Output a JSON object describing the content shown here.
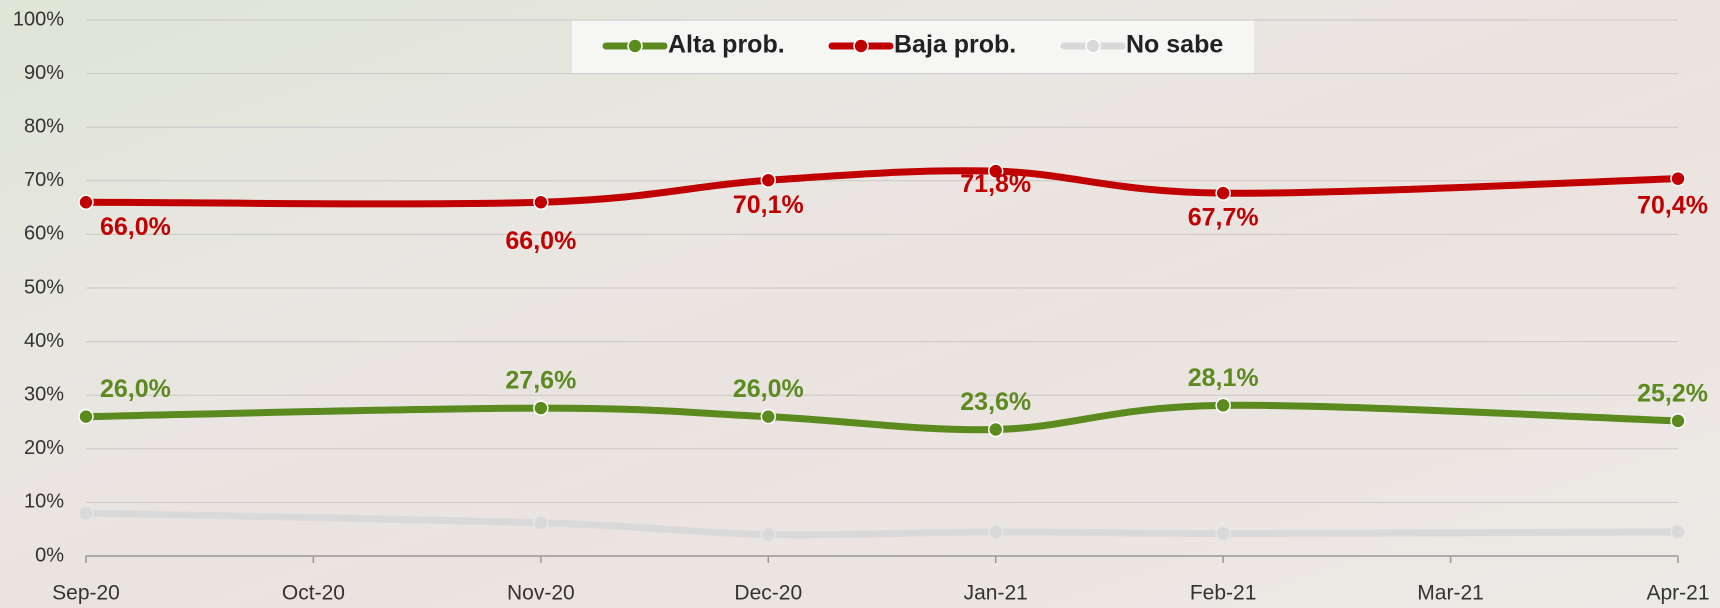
{
  "chart_data": {
    "type": "line",
    "x": [
      "Sep-20",
      "Nov-20",
      "Dec-20",
      "Jan-21",
      "Feb-21",
      "Apr-21"
    ],
    "xticks": [
      "Sep-20",
      "Oct-20",
      "Nov-20",
      "Dec-20",
      "Jan-21",
      "Feb-21",
      "Mar-21",
      "Apr-21"
    ],
    "ylim": [
      0,
      100
    ],
    "yticks": [
      {
        "value": 0,
        "label": "0%"
      },
      {
        "value": 10,
        "label": "10%"
      },
      {
        "value": 20,
        "label": "20%"
      },
      {
        "value": 30,
        "label": "30%"
      },
      {
        "value": 40,
        "label": "40%"
      },
      {
        "value": 50,
        "label": "50%"
      },
      {
        "value": 60,
        "label": "60%"
      },
      {
        "value": 70,
        "label": "70%"
      },
      {
        "value": 80,
        "label": "80%"
      },
      {
        "value": 90,
        "label": "90%"
      },
      {
        "value": 100,
        "label": "100%"
      }
    ],
    "grid": true,
    "legend": "top",
    "series": [
      {
        "name": "Alta prob.",
        "color": "#5b8a1f",
        "values": [
          26.0,
          27.6,
          26.0,
          23.6,
          28.1,
          25.2
        ],
        "value_labels": [
          "26,0%",
          "27,6%",
          "26,0%",
          "23,6%",
          "28,1%",
          "25,2%"
        ]
      },
      {
        "name": "Baja prob.",
        "color": "#c00000",
        "values": [
          66.0,
          66.0,
          70.1,
          71.8,
          67.7,
          70.4
        ],
        "value_labels": [
          "66,0%",
          "66,0%",
          "70,1%",
          "71,8%",
          "67,7%",
          "70,4%"
        ]
      },
      {
        "name": "No sabe",
        "color": "#d9d9d9",
        "values": [
          8.0,
          6.2,
          4.0,
          4.5,
          4.2,
          4.5
        ]
      }
    ]
  }
}
